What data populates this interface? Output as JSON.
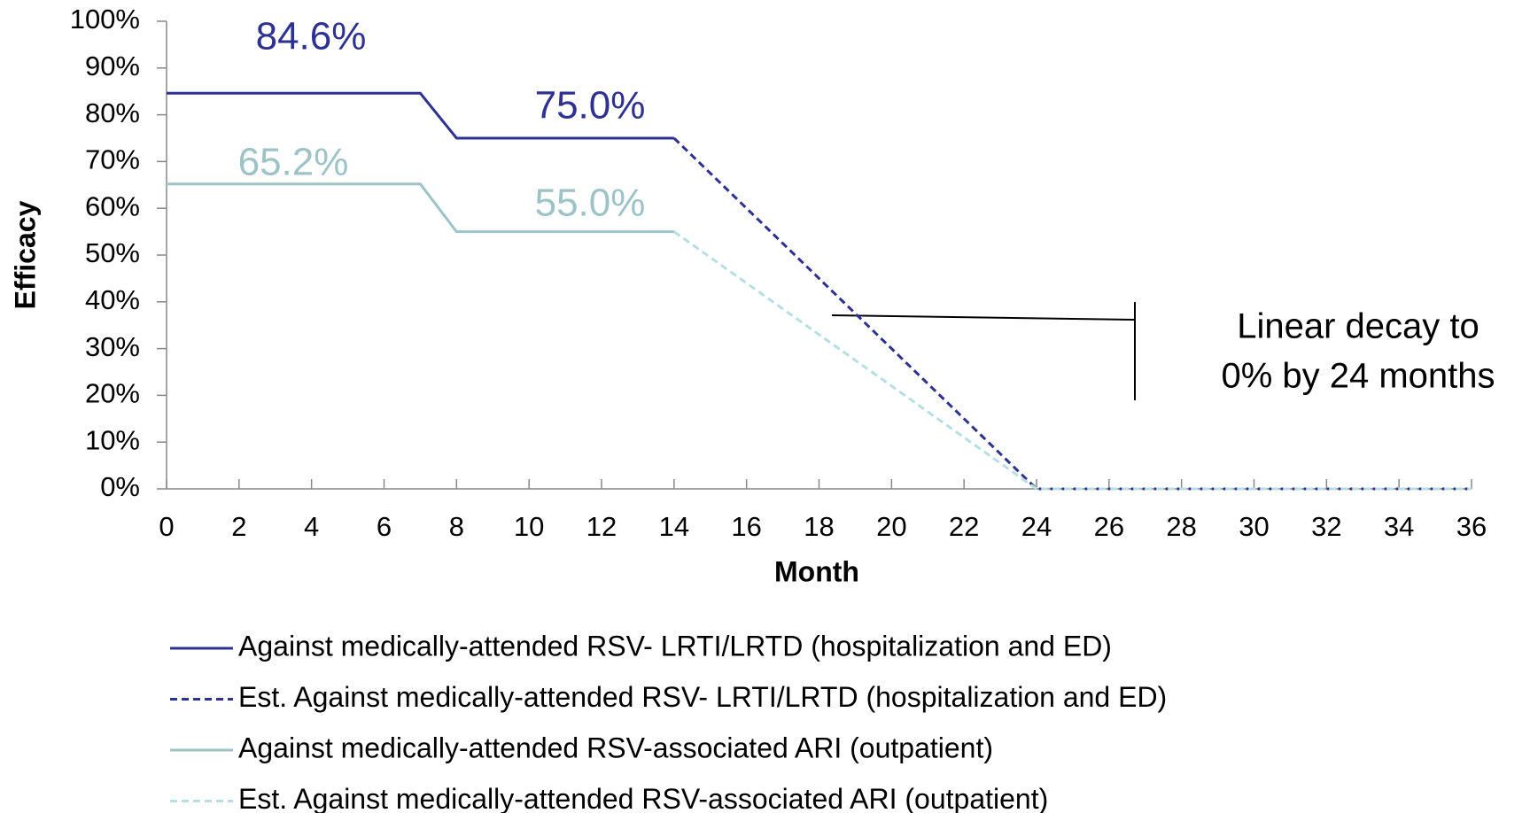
{
  "chart_data": {
    "type": "line",
    "xlabel": "Month",
    "ylabel": "Efficacy",
    "xlim": [
      0,
      36
    ],
    "xticks": [
      0,
      2,
      4,
      6,
      8,
      10,
      12,
      14,
      16,
      18,
      20,
      22,
      24,
      26,
      28,
      30,
      32,
      34,
      36
    ],
    "ylim": [
      0,
      100
    ],
    "yticks": [
      {
        "value": 0,
        "label": "0%"
      },
      {
        "value": 10,
        "label": "10%"
      },
      {
        "value": 20,
        "label": "20%"
      },
      {
        "value": 30,
        "label": "30%"
      },
      {
        "value": 40,
        "label": "40%"
      },
      {
        "value": 50,
        "label": "50%"
      },
      {
        "value": 60,
        "label": "60%"
      },
      {
        "value": 70,
        "label": "70%"
      },
      {
        "value": 80,
        "label": "80%"
      },
      {
        "value": 90,
        "label": "90%"
      },
      {
        "value": 100,
        "label": "100%"
      }
    ],
    "grid": false,
    "series": [
      {
        "name": "Against medically-attended RSV- LRTI/LRTD (hospitalization and ED)",
        "color": "#2e3192",
        "dashed": false,
        "x": [
          0,
          7,
          8,
          14
        ],
        "values": [
          84.6,
          84.6,
          75,
          75
        ]
      },
      {
        "name": "Est. Against medically-attended RSV- LRTI/LRTD (hospitalization and ED)",
        "color": "#2e3192",
        "dashed": true,
        "x": [
          14,
          24,
          36
        ],
        "values": [
          75,
          0,
          0
        ]
      },
      {
        "name": "Against medically-attended RSV-associated ARI (outpatient)",
        "color": "#9dc3c6",
        "dashed": false,
        "x": [
          0,
          7,
          8,
          14
        ],
        "values": [
          65.2,
          65.2,
          55,
          55
        ]
      },
      {
        "name": "Est. Against medically-attended RSV-associated ARI (outpatient)",
        "color": "#b7dfe3",
        "dashed": true,
        "x": [
          14,
          24,
          36
        ],
        "values": [
          55,
          0,
          0
        ]
      }
    ],
    "annotations": [
      {
        "text": "84.6%",
        "color": "#2e3192"
      },
      {
        "text": "75.0%",
        "color": "#2e3192"
      },
      {
        "text": "65.2%",
        "color": "#9dc3c6"
      },
      {
        "text": "55.0%",
        "color": "#9dc3c6"
      },
      {
        "text": "Linear decay to",
        "color": "#000000"
      },
      {
        "text": "0% by 24 months",
        "color": "#000000"
      }
    ]
  }
}
